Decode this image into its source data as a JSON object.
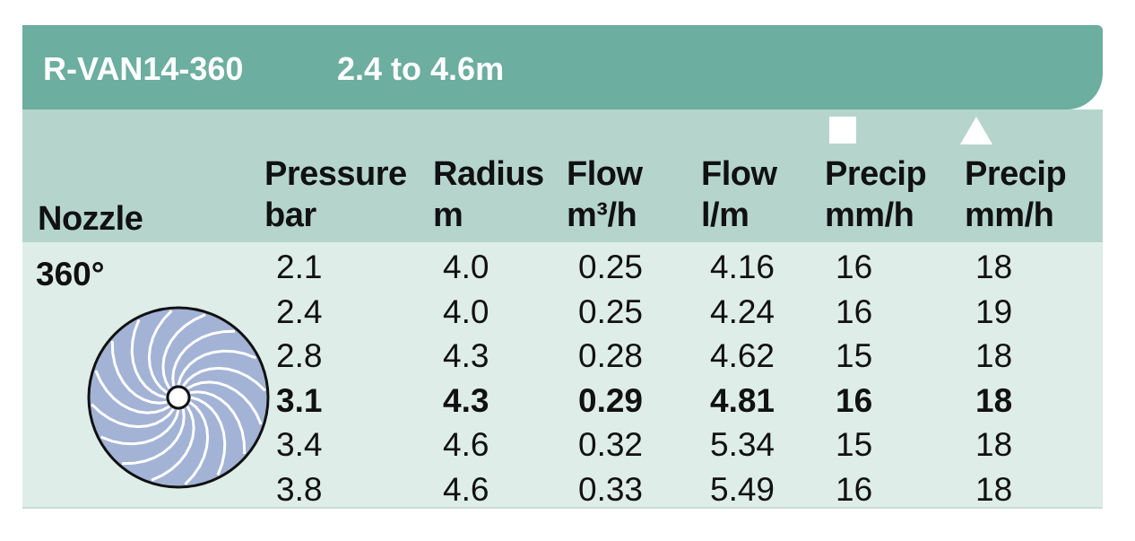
{
  "header": {
    "model": "R-VAN14-360",
    "range": "2.4 to 4.6m"
  },
  "table": {
    "columns": [
      [
        "Nozzle"
      ],
      [
        "Pressure",
        "bar"
      ],
      [
        "Radius",
        "m"
      ],
      [
        "Flow",
        "m³/h"
      ],
      [
        "Flow",
        "l/m"
      ],
      [
        "Precip",
        "mm/h"
      ],
      [
        "Precip",
        "mm/h"
      ]
    ],
    "nozzle": "360°",
    "rows": [
      [
        "2.1",
        "4.0",
        "0.25",
        "4.16",
        "16",
        "18"
      ],
      [
        "2.4",
        "4.0",
        "0.25",
        "4.24",
        "16",
        "19"
      ],
      [
        "2.8",
        "4.3",
        "0.28",
        "4.62",
        "15",
        "18"
      ],
      [
        "3.1",
        "4.3",
        "0.29",
        "4.81",
        "16",
        "18"
      ],
      [
        "3.4",
        "4.6",
        "0.32",
        "5.34",
        "15",
        "18"
      ],
      [
        "3.8",
        "4.6",
        "0.33",
        "5.49",
        "16",
        "18"
      ]
    ],
    "bold_row": 3
  }
}
